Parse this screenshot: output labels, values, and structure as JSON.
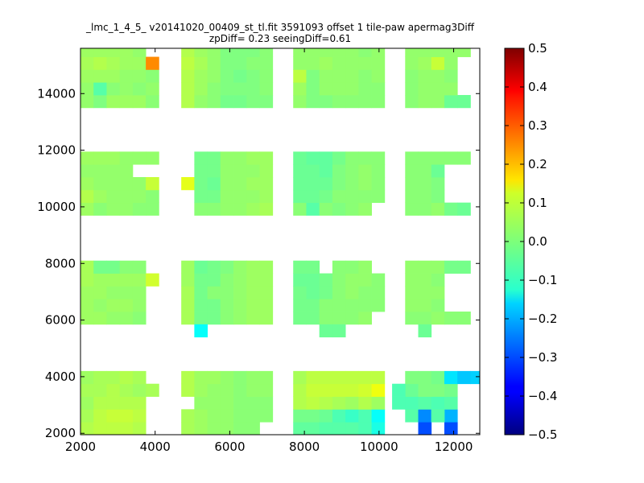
{
  "chart_data": {
    "type": "heatmap",
    "title_lines": [
      "_lmc_1_4_5_ v20141020_00409_st_tl.fit 3591093 offset 1 tile-paw apermag3Diff",
      "zpDiff= 0.23 seeingDiff=0.61"
    ],
    "xlabel": "",
    "ylabel": "",
    "xlim": [
      2000,
      12700
    ],
    "ylim": [
      1950,
      15600
    ],
    "x_ticks": [
      2000,
      4000,
      6000,
      8000,
      10000,
      12000
    ],
    "y_ticks": [
      2000,
      4000,
      6000,
      8000,
      10000,
      12000,
      14000
    ],
    "colorbar": {
      "colormap": "jet",
      "vmin": -0.5,
      "vmax": 0.5,
      "ticks": [
        "0.5",
        "0.4",
        "0.3",
        "0.2",
        "0.1",
        "0.0",
        "−0.1",
        "−0.2",
        "−0.3",
        "−0.4",
        "−0.5"
      ]
    },
    "grid": false,
    "cell_size": [
      350,
      450
    ],
    "columns_x": [
      2000,
      2350,
      2700,
      3050,
      3400,
      3750,
      4700,
      5050,
      5400,
      5750,
      6100,
      6450,
      6800,
      7700,
      8050,
      8400,
      8750,
      9100,
      9450,
      9800,
      10700,
      11050,
      11400,
      11750,
      12100,
      12450
    ],
    "strips": [
      {
        "y": [
          13500,
          13950,
          14400,
          14850,
          15300
        ],
        "values": [
          [
            0.02,
            0.0,
            0.03,
            0.03,
            0.03,
            0.01,
            0.05,
            0.02,
            0.01,
            -0.01,
            -0.01,
            0.0,
            0.0,
            0.02,
            0.0,
            0.0,
            0.01,
            0.01,
            0.01,
            0.01,
            0.01,
            0.02,
            0.02,
            -0.02,
            -0.02,
            null
          ],
          [
            0.02,
            -0.04,
            0.01,
            0.02,
            0.01,
            0.02,
            0.05,
            0.03,
            0.01,
            0.0,
            0.0,
            0.0,
            0.01,
            0.03,
            0.0,
            0.02,
            0.02,
            0.02,
            0.01,
            0.01,
            0.01,
            0.02,
            0.02,
            0.02,
            null,
            null
          ],
          [
            0.03,
            0.03,
            0.03,
            0.02,
            0.02,
            0.01,
            0.05,
            0.03,
            0.02,
            0.0,
            -0.01,
            0.0,
            0.01,
            0.06,
            0.0,
            0.02,
            0.02,
            0.02,
            0.01,
            0.02,
            0.01,
            0.02,
            0.02,
            0.01,
            null,
            null
          ],
          [
            0.04,
            0.05,
            0.04,
            0.03,
            0.03,
            0.24,
            0.06,
            0.04,
            0.02,
            0.0,
            0.0,
            0.01,
            0.01,
            0.02,
            0.02,
            0.03,
            0.02,
            0.02,
            0.02,
            0.02,
            0.02,
            0.03,
            0.07,
            0.02,
            null,
            null
          ],
          [
            0.03,
            0.03,
            0.03,
            0.03,
            0.02,
            null,
            0.05,
            0.03,
            0.02,
            0.0,
            0.0,
            0.0,
            0.01,
            0.02,
            0.02,
            0.02,
            0.02,
            0.02,
            0.01,
            0.02,
            0.02,
            0.02,
            0.02,
            0.02,
            0.02,
            null
          ]
        ]
      },
      {
        "y": [
          9700,
          10150,
          10600,
          11050,
          11500
        ],
        "values": [
          [
            0.03,
            0.01,
            0.02,
            0.02,
            0.01,
            0.01,
            null,
            0.01,
            0.01,
            0.02,
            0.02,
            0.03,
            0.04,
            0.01,
            -0.04,
            0.01,
            0.0,
            0.01,
            0.02,
            null,
            0.01,
            0.01,
            0.02,
            -0.01,
            -0.02,
            null
          ],
          [
            0.05,
            0.03,
            0.02,
            0.02,
            0.02,
            0.01,
            null,
            -0.01,
            -0.01,
            0.02,
            0.02,
            0.02,
            0.03,
            -0.02,
            -0.02,
            -0.01,
            0.01,
            0.01,
            0.01,
            0.01,
            0.01,
            0.01,
            0.0,
            null,
            null,
            null
          ],
          [
            0.03,
            0.02,
            0.02,
            0.02,
            0.02,
            0.07,
            0.1,
            -0.01,
            -0.02,
            0.02,
            0.02,
            0.03,
            0.03,
            -0.02,
            -0.02,
            -0.02,
            0.0,
            0.01,
            0.02,
            0.01,
            0.01,
            0.01,
            0.0,
            null,
            null,
            null
          ],
          [
            0.02,
            0.02,
            0.02,
            0.02,
            null,
            null,
            null,
            -0.01,
            -0.01,
            0.02,
            0.02,
            0.02,
            0.03,
            -0.02,
            -0.02,
            -0.03,
            0.0,
            0.01,
            0.02,
            0.01,
            0.01,
            0.01,
            -0.02,
            null,
            null,
            null
          ],
          [
            0.03,
            0.03,
            0.03,
            0.02,
            0.02,
            0.02,
            null,
            -0.01,
            -0.01,
            0.02,
            0.02,
            0.03,
            0.03,
            -0.02,
            -0.03,
            -0.03,
            -0.01,
            0.01,
            0.01,
            0.01,
            0.01,
            0.01,
            0.01,
            0.01,
            0.01,
            null
          ]
        ]
      },
      {
        "y": [
          5850,
          6300,
          6750,
          7200,
          7650
        ],
        "values": [
          [
            0.03,
            0.03,
            0.02,
            0.02,
            0.01,
            null,
            0.04,
            -0.01,
            -0.01,
            0.01,
            0.02,
            0.03,
            0.03,
            -0.01,
            -0.01,
            0.01,
            0.01,
            0.01,
            0.02,
            null,
            0.01,
            0.01,
            0.02,
            0.01,
            0.01,
            null
          ],
          [
            0.03,
            0.02,
            0.03,
            0.03,
            0.02,
            null,
            0.04,
            -0.01,
            -0.01,
            0.01,
            0.02,
            0.03,
            0.03,
            -0.01,
            -0.01,
            0.01,
            0.01,
            0.01,
            0.01,
            0.01,
            0.02,
            0.02,
            0.01,
            null,
            null,
            null
          ],
          [
            0.03,
            0.03,
            0.02,
            0.02,
            0.02,
            null,
            0.04,
            -0.01,
            0.01,
            0.01,
            0.02,
            0.03,
            0.03,
            -0.01,
            -0.02,
            -0.01,
            0.01,
            0.02,
            0.01,
            0.01,
            0.02,
            0.02,
            0.02,
            null,
            null,
            null
          ],
          [
            0.04,
            0.03,
            0.03,
            0.03,
            0.03,
            0.08,
            0.03,
            -0.01,
            -0.01,
            0.01,
            0.02,
            0.03,
            0.03,
            -0.02,
            -0.02,
            -0.01,
            0.01,
            0.02,
            0.02,
            0.01,
            0.02,
            0.02,
            0.01,
            null,
            null,
            null
          ],
          [
            0.04,
            -0.01,
            -0.01,
            0.01,
            0.01,
            null,
            0.03,
            -0.02,
            -0.01,
            0.0,
            0.02,
            0.03,
            0.03,
            -0.01,
            -0.01,
            null,
            0.01,
            0.01,
            0.02,
            null,
            0.02,
            0.02,
            0.02,
            -0.01,
            -0.01,
            null
          ]
        ]
      },
      {
        "y": [
          1950,
          2400,
          2850,
          3300,
          3750
        ],
        "values": [
          [
            0.05,
            0.06,
            0.06,
            0.06,
            0.05,
            null,
            0.04,
            0.03,
            0.02,
            0.02,
            0.01,
            0.01,
            null,
            -0.03,
            -0.03,
            -0.04,
            -0.04,
            -0.04,
            -0.05,
            -0.1,
            null,
            -0.3,
            null,
            -0.3,
            null,
            null
          ],
          [
            0.04,
            0.06,
            0.07,
            0.07,
            0.06,
            null,
            0.04,
            0.03,
            0.02,
            0.02,
            0.01,
            0.01,
            0.01,
            -0.01,
            -0.01,
            -0.02,
            -0.05,
            -0.07,
            -0.05,
            -0.12,
            -0.04,
            -0.24,
            -0.07,
            -0.2,
            null,
            null
          ],
          [
            0.03,
            0.05,
            0.05,
            0.05,
            0.05,
            null,
            null,
            0.02,
            0.02,
            0.02,
            0.01,
            0.01,
            0.01,
            0.05,
            0.06,
            0.05,
            0.04,
            0.03,
            0.05,
            0.03,
            -0.05,
            -0.04,
            -0.05,
            -0.04,
            null,
            null
          ],
          [
            0.04,
            0.04,
            0.05,
            0.04,
            0.03,
            0.04,
            0.05,
            0.03,
            0.02,
            0.02,
            0.01,
            0.02,
            0.02,
            0.05,
            0.07,
            0.07,
            0.07,
            0.07,
            0.08,
            0.11,
            -0.02,
            0.0,
            0.0,
            -0.01,
            null,
            null
          ],
          [
            0.03,
            0.04,
            0.04,
            0.05,
            0.04,
            null,
            0.05,
            0.03,
            0.03,
            0.02,
            0.01,
            0.02,
            0.02,
            0.04,
            0.06,
            0.06,
            0.06,
            0.06,
            0.06,
            0.06,
            0.0,
            0.0,
            -0.01,
            -0.15,
            -0.18,
            -0.17
          ]
        ]
      }
    ],
    "extra_cells": [
      {
        "x": 5050,
        "y": 5400,
        "value": -0.12
      },
      {
        "x": 8400,
        "y": 5400,
        "value": -0.02
      },
      {
        "x": 8750,
        "y": 5400,
        "value": -0.02
      },
      {
        "x": 11050,
        "y": 5400,
        "value": -0.02
      },
      {
        "x": 10350,
        "y": 3300,
        "value": -0.05
      },
      {
        "x": 10350,
        "y": 2850,
        "value": -0.05
      },
      {
        "x": 11400,
        "y": 2400,
        "value": -0.04
      }
    ]
  }
}
